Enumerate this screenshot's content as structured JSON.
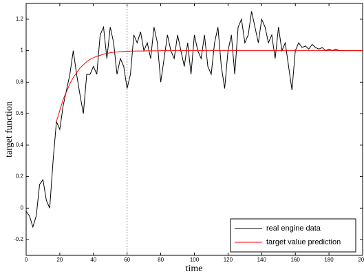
{
  "chart_data": {
    "type": "line",
    "xlabel": "time",
    "ylabel": "target function",
    "x": [
      0,
      2,
      4,
      6,
      8,
      10,
      12,
      14,
      16,
      18,
      20,
      22,
      24,
      26,
      28,
      30,
      32,
      34,
      36,
      38,
      40,
      42,
      44,
      46,
      48,
      50,
      52,
      54,
      56,
      58,
      60,
      62,
      64,
      66,
      68,
      70,
      72,
      74,
      76,
      78,
      80,
      82,
      84,
      86,
      88,
      90,
      92,
      94,
      96,
      98,
      100,
      102,
      104,
      106,
      108,
      110,
      112,
      114,
      116,
      118,
      120,
      122,
      124,
      126,
      128,
      130,
      132,
      134,
      136,
      138,
      140,
      142,
      144,
      146,
      148,
      150,
      152,
      154,
      156,
      158,
      160,
      162,
      164,
      166,
      168,
      170,
      172,
      174,
      176,
      178,
      180,
      182,
      184,
      186,
      188,
      190,
      192,
      194,
      196,
      198,
      200
    ],
    "series": [
      {
        "name": "real engine data",
        "color": "#000000",
        "values": [
          -0.02,
          -0.05,
          -0.12,
          -0.05,
          0.15,
          0.18,
          0.05,
          0.0,
          0.3,
          0.55,
          0.5,
          0.65,
          0.75,
          0.85,
          1.0,
          0.85,
          0.72,
          0.6,
          0.85,
          0.85,
          0.9,
          0.85,
          1.1,
          1.15,
          0.95,
          1.15,
          1.05,
          0.85,
          0.95,
          0.9,
          0.76,
          0.85,
          1.1,
          1.05,
          1.12,
          1.0,
          1.05,
          0.95,
          1.15,
          1.05,
          0.8,
          0.95,
          1.1,
          1.0,
          0.95,
          1.1,
          1.0,
          0.9,
          1.05,
          0.85,
          1.1,
          1.0,
          0.95,
          1.1,
          0.9,
          0.85,
          1.05,
          1.15,
          0.9,
          0.76,
          1.0,
          1.1,
          0.85,
          1.15,
          1.2,
          1.05,
          1.1,
          1.25,
          1.15,
          1.05,
          1.2,
          1.15,
          1.05,
          1.1,
          0.95,
          1.15,
          1.0,
          1.05,
          0.9,
          0.75,
          1.0,
          1.05,
          1.02,
          1.03,
          1.01,
          1.04,
          1.02,
          1.01,
          1.02,
          1.0,
          1.01,
          1.0,
          1.01,
          1.0,
          1.0,
          1.0,
          1.0,
          1.0,
          1.0,
          1.0,
          1.0
        ]
      },
      {
        "name": "target value prediction",
        "color": "#ff0000",
        "values": [
          null,
          null,
          null,
          null,
          null,
          null,
          null,
          null,
          null,
          0.55,
          0.62,
          0.69,
          0.74,
          0.79,
          0.83,
          0.86,
          0.89,
          0.91,
          0.93,
          0.945,
          0.955,
          0.965,
          0.97,
          0.978,
          0.983,
          0.987,
          0.99,
          0.992,
          0.994,
          0.995,
          0.996,
          0.997,
          0.997,
          0.998,
          0.998,
          0.998,
          0.999,
          0.999,
          0.999,
          0.999,
          1.0,
          1.0,
          1.0,
          1.0,
          1.0,
          1.0,
          1.0,
          1.0,
          1.0,
          1.0,
          1.0,
          1.0,
          1.0,
          1.0,
          1.0,
          1.0,
          1.0,
          1.0,
          1.0,
          1.0,
          1.0,
          1.0,
          1.0,
          1.0,
          1.0,
          1.0,
          1.0,
          1.0,
          1.0,
          1.0,
          1.0,
          1.0,
          1.0,
          1.0,
          1.0,
          1.0,
          1.0,
          1.0,
          1.0,
          1.0,
          1.0,
          1.0,
          1.0,
          1.0,
          1.0,
          1.0,
          1.0,
          1.0,
          1.0,
          1.0,
          1.0,
          1.0,
          1.0,
          1.0,
          1.0,
          1.0,
          1.0,
          1.0,
          1.0,
          1.0,
          1.0
        ]
      }
    ],
    "xlim": [
      0,
      200
    ],
    "ylim": [
      -0.3,
      1.3
    ],
    "xticks": [
      0,
      20,
      40,
      60,
      80,
      100,
      120,
      140,
      160,
      180,
      200
    ],
    "yticks": [
      -0.2,
      0,
      0.2,
      0.4,
      0.6,
      0.8,
      1,
      1.2
    ],
    "vline_x": 60,
    "legend": "lower right"
  }
}
